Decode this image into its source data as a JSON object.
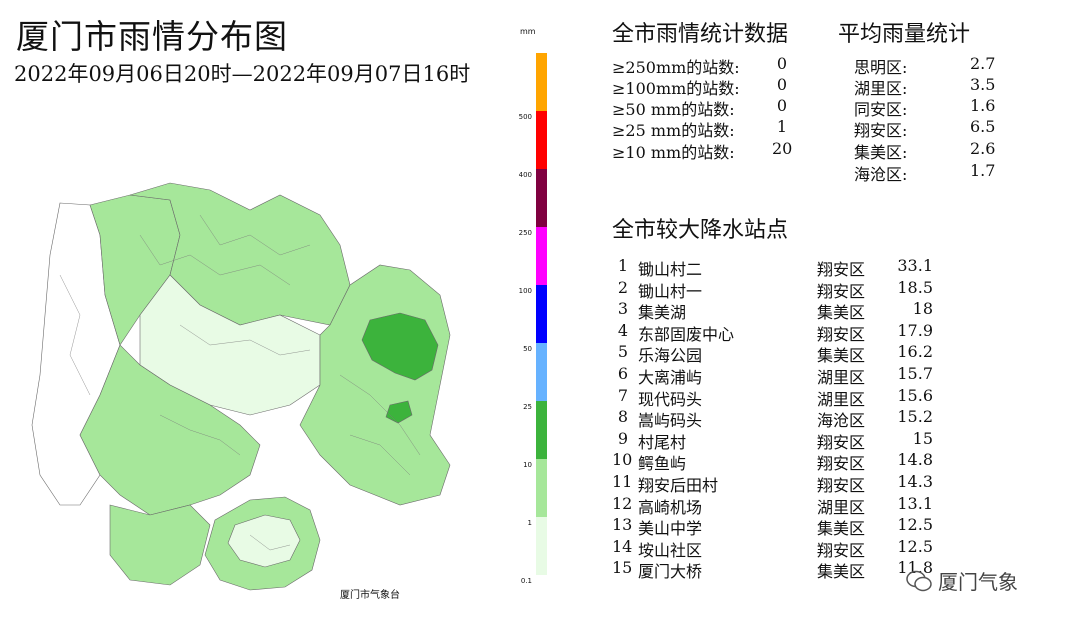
{
  "title": "厦门市雨情分布图",
  "subtitle": "2022年09月06日20时—2022年09月07日16时",
  "credit": "厦门市气象台",
  "legend": {
    "unit": "mm",
    "ticks": [
      "500",
      "400",
      "250",
      "100",
      "50",
      "25",
      "10",
      "1",
      "0.1"
    ],
    "colors": [
      "#ffa500",
      "#ff0000",
      "#800040",
      "#ff00ff",
      "#0000ff",
      "#66b2ff",
      "#3cb33c",
      "#a6e79a",
      "#e8fbe5"
    ]
  },
  "stats": {
    "title": "全市雨情统计数据",
    "rows": [
      {
        "label": "≥250mm的站数:",
        "value": "0"
      },
      {
        "label": "≥100mm的站数:",
        "value": "0"
      },
      {
        "label": "≥50 mm的站数:",
        "value": "0"
      },
      {
        "label": "≥25 mm的站数:",
        "value": "1"
      },
      {
        "label": "≥10 mm的站数:",
        "value": "20"
      }
    ]
  },
  "average": {
    "title": "平均雨量统计",
    "rows": [
      {
        "district": "思明区:",
        "value": "2.7"
      },
      {
        "district": "湖里区:",
        "value": "3.5"
      },
      {
        "district": "同安区:",
        "value": "1.6"
      },
      {
        "district": "翔安区:",
        "value": "6.5"
      },
      {
        "district": "集美区:",
        "value": "2.6"
      },
      {
        "district": "海沧区:",
        "value": "1.7"
      }
    ]
  },
  "stations": {
    "title": "全市较大降水站点",
    "rows": [
      {
        "rank": "1",
        "name": "锄山村二",
        "district": "翔安区",
        "value": "33.1"
      },
      {
        "rank": "2",
        "name": "锄山村一",
        "district": "翔安区",
        "value": "18.5"
      },
      {
        "rank": "3",
        "name": "集美湖",
        "district": "集美区",
        "value": "18"
      },
      {
        "rank": "4",
        "name": "东部固废中心",
        "district": "翔安区",
        "value": "17.9"
      },
      {
        "rank": "5",
        "name": "乐海公园",
        "district": "集美区",
        "value": "16.2"
      },
      {
        "rank": "6",
        "name": "大离浦屿",
        "district": "湖里区",
        "value": "15.7"
      },
      {
        "rank": "7",
        "name": "现代码头",
        "district": "湖里区",
        "value": "15.6"
      },
      {
        "rank": "8",
        "name": "嵩屿码头",
        "district": "海沧区",
        "value": "15.2"
      },
      {
        "rank": "9",
        "name": "村尾村",
        "district": "翔安区",
        "value": "15"
      },
      {
        "rank": "10",
        "name": "鳄鱼屿",
        "district": "翔安区",
        "value": "14.8"
      },
      {
        "rank": "11",
        "name": "翔安后田村",
        "district": "翔安区",
        "value": "14.3"
      },
      {
        "rank": "12",
        "name": "高崎机场",
        "district": "湖里区",
        "value": "13.1"
      },
      {
        "rank": "13",
        "name": "美山中学",
        "district": "集美区",
        "value": "12.5"
      },
      {
        "rank": "14",
        "name": "垵山社区",
        "district": "翔安区",
        "value": "12.5"
      },
      {
        "rank": "15",
        "name": "厦门大桥",
        "district": "集美区",
        "value": "11.8"
      }
    ]
  },
  "watermark": "厦门气象"
}
